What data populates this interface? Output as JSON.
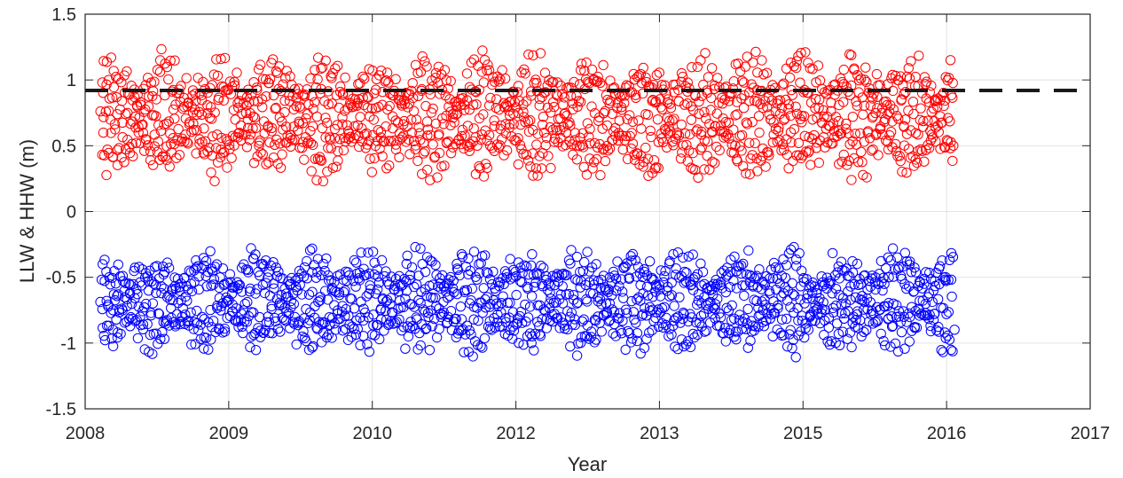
{
  "chart_data": {
    "type": "scatter",
    "title": "",
    "xlabel": "Year",
    "ylabel": "LLW & HHW (m)",
    "xlim": [
      0,
      9
    ],
    "ylim": [
      -1.5,
      1.5
    ],
    "x_tick_labels": [
      "2008",
      "2009",
      "2010",
      "2012",
      "2013",
      "2015",
      "2016",
      "2017"
    ],
    "y_ticks": [
      -1.5,
      -1,
      -0.5,
      0,
      0.5,
      1,
      1.5
    ],
    "y_tick_labels": [
      "-1.5",
      "-1",
      "-0.5",
      "0",
      "0.5",
      "1",
      "1.5"
    ],
    "grid": true,
    "reference_line": {
      "y": 0.92,
      "style": "dashed",
      "color": "#1a1a1a"
    },
    "series": [
      {
        "marker": "open-circle",
        "color": "#ff0000",
        "x_range": [
          0.14,
          7.78
        ],
        "mean": 0.72,
        "amplitude_max": 0.5,
        "amplitude_min": 0.2,
        "range": [
          0.23,
          1.3
        ],
        "cycles_per_unit": 2.1
      },
      {
        "marker": "open-circle",
        "color": "#0000ff",
        "x_range": [
          0.14,
          7.78
        ],
        "mean": -0.68,
        "amplitude_max": 0.42,
        "amplitude_min": 0.18,
        "range": [
          -1.17,
          -0.27
        ],
        "cycles_per_unit": 2.1
      }
    ]
  }
}
